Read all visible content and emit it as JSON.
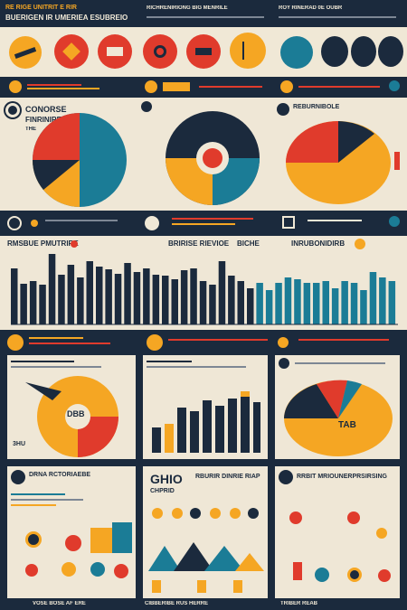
{
  "header": {
    "left_title": "RE RIGE UNITRIT E RIR",
    "left_subtitle": "BUERIGEN IR UMERIEA ESUBREIO",
    "mid_title": "RICHRENIRIONG BIG MENRILE",
    "right_title": "ROY RINERAD 0E OUBR"
  },
  "row1_icons": [
    "orange-circle-icon",
    "red-circle-icon",
    "red-circle-icon",
    "red-circle-icon",
    "orange-circle-icon",
    "teal-circle-icon",
    "navy-drop-icon",
    "navy-drop-icon",
    "navy-drop-icon"
  ],
  "panel_a": {
    "title": "CONORSE",
    "subtitle": "FINRINIRE",
    "small": "THE"
  },
  "panel_c": {
    "title": "REBURNIBOLE"
  },
  "mid_banner": {
    "left": "RMSBUE PMUTRIRE",
    "center": "BRIRISE RIEVIOE",
    "center2": "BICHE",
    "right": "INRUBONIDIRB"
  },
  "bar_chart": {
    "values": [
      62,
      45,
      48,
      44,
      78,
      55,
      66,
      52,
      70,
      64,
      61,
      56,
      68,
      58,
      62,
      55,
      54,
      50,
      60,
      62,
      48,
      44,
      70,
      54,
      48,
      40,
      46,
      38,
      46,
      52,
      50,
      46,
      46,
      48,
      40,
      48,
      46,
      38,
      58,
      52,
      48
    ],
    "colors": [
      "#1b2a3d",
      "#1b7c96",
      "#f5a623"
    ]
  },
  "lower_left": {
    "title": "DRNA RCTORIAEBE",
    "donut_label": "DBB",
    "label": "3HU"
  },
  "lower_mid": {
    "title": "RBURIR DINRIE RIAP",
    "big": "GHIO",
    "sub": "CHPRID"
  },
  "lower_right": {
    "title": "RRBIT MRIOUNERPRSIRSING",
    "pie_label": "TAB"
  },
  "footer": {
    "left": "VOSE BOSE AF ERE",
    "mid": "CIBBERIBE RUS HERRE",
    "right": "TRIBER REAB"
  }
}
